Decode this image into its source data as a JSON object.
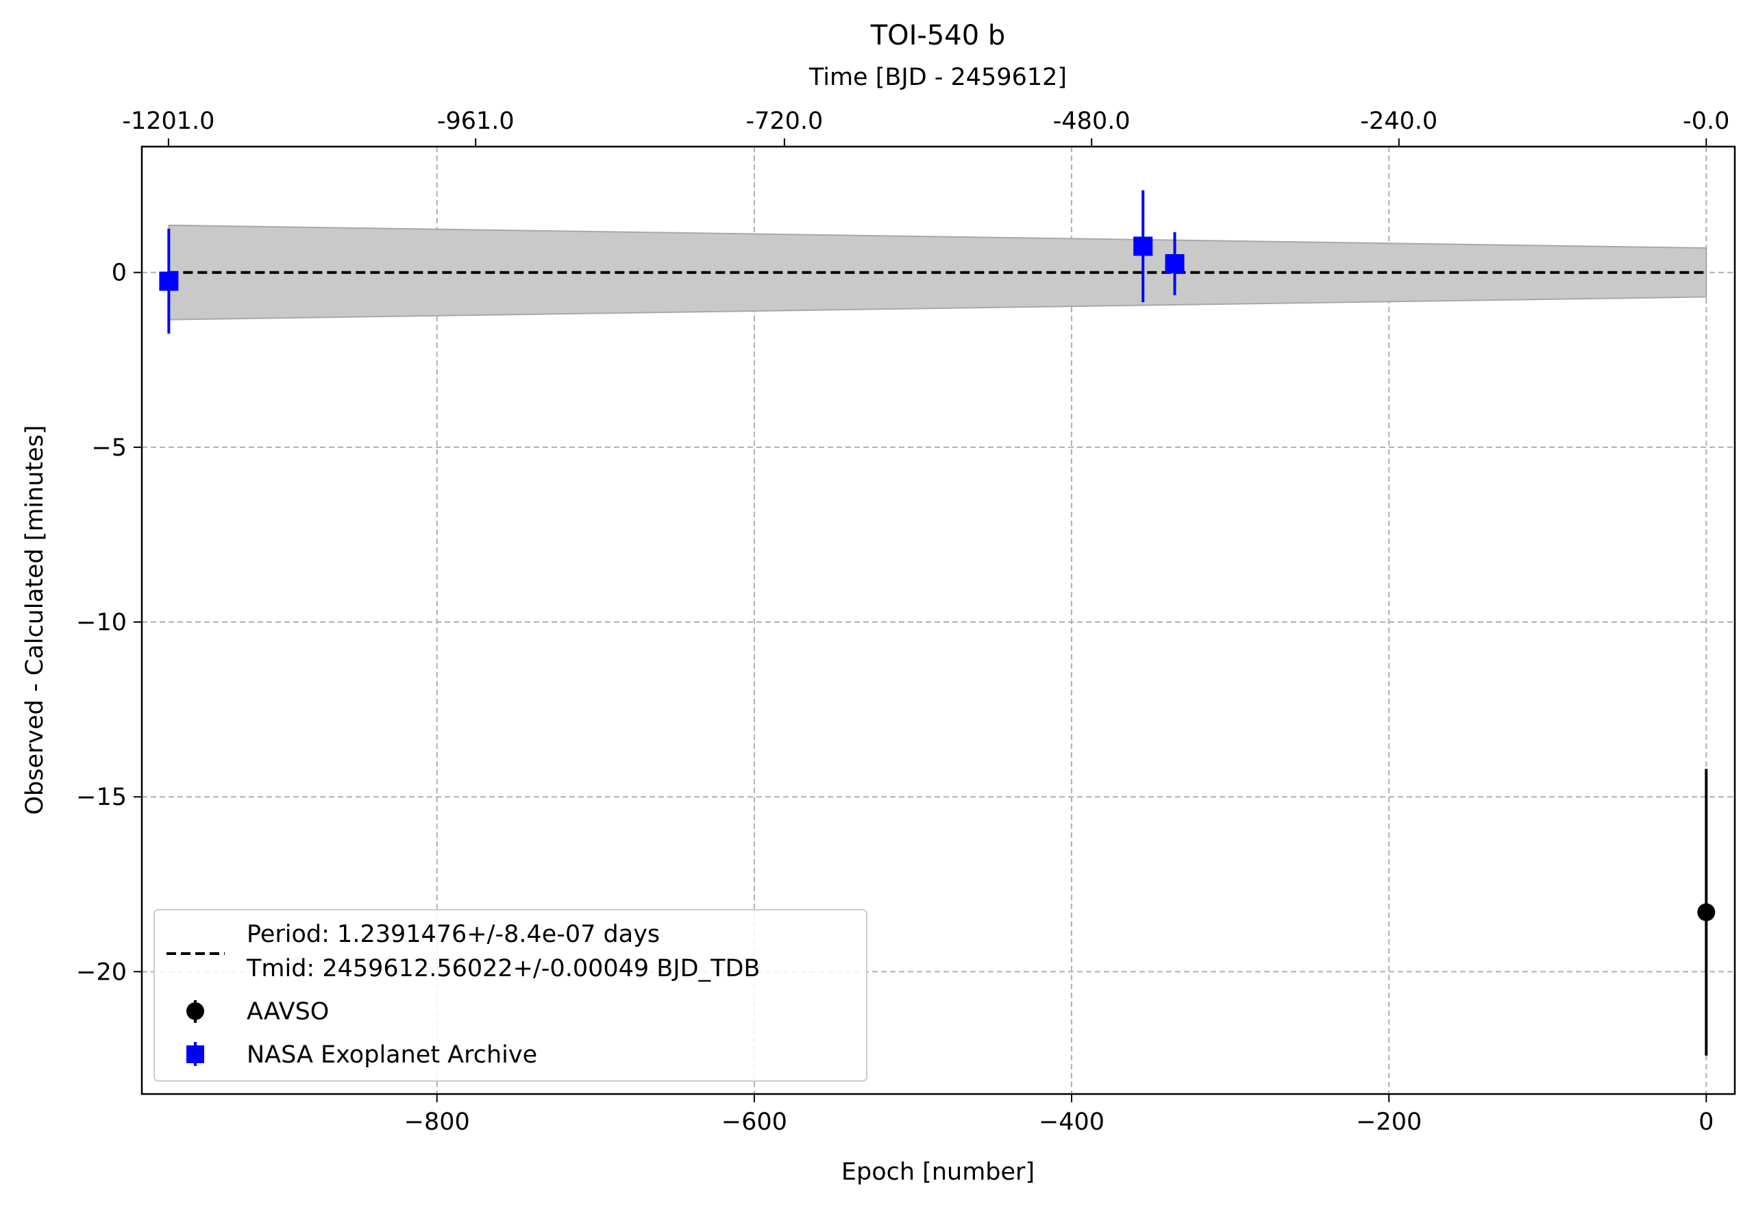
{
  "chart_data": {
    "type": "scatter",
    "title": "TOI-540 b",
    "xlabel": "Epoch [number]",
    "ylabel": "Observed - Calculated [minutes]",
    "x2label": "Time [BJD - 2459612]",
    "xlim": [
      -986,
      18
    ],
    "ylim": [
      -23.5,
      3.6
    ],
    "xticks": [
      -800,
      -600,
      -400,
      -200,
      0
    ],
    "xtick_labels": [
      "−800",
      "−600",
      "−400",
      "−200",
      "0"
    ],
    "yticks": [
      0,
      -5,
      -10,
      -15,
      -20
    ],
    "ytick_labels": [
      "0",
      "−5",
      "−10",
      "−15",
      "−20"
    ],
    "x2ticks": [
      -969.2,
      -775.6,
      -581.0,
      -387.4,
      -193.7,
      0
    ],
    "x2tick_labels": [
      "-1201.0",
      "-961.0",
      "-720.0",
      "-480.0",
      "-240.0",
      "-0.0"
    ],
    "grid": true,
    "legend_position": "lower-left",
    "fit": {
      "label": "Period: 1.2391476+/-8.4e-07 days\nTmid: 2459612.56022+/-0.00049 BJD_TDB",
      "x": [
        -969,
        0
      ],
      "y": [
        0,
        0
      ],
      "band_upper": [
        1.35,
        0.7
      ],
      "band_lower": [
        -1.35,
        -0.7
      ],
      "color": "#000000",
      "band_color": "#c9c9c9"
    },
    "series": [
      {
        "name": "AAVSO",
        "marker": "circle",
        "color": "#000000",
        "x": [
          0
        ],
        "y": [
          -18.3
        ],
        "yerr": [
          4.1
        ]
      },
      {
        "name": "NASA Exoplanet Archive",
        "marker": "square",
        "color": "#0000ff",
        "x": [
          -969,
          -355,
          -335
        ],
        "y": [
          -0.25,
          0.75,
          0.25
        ],
        "yerr": [
          1.5,
          1.6,
          0.9
        ]
      }
    ]
  }
}
